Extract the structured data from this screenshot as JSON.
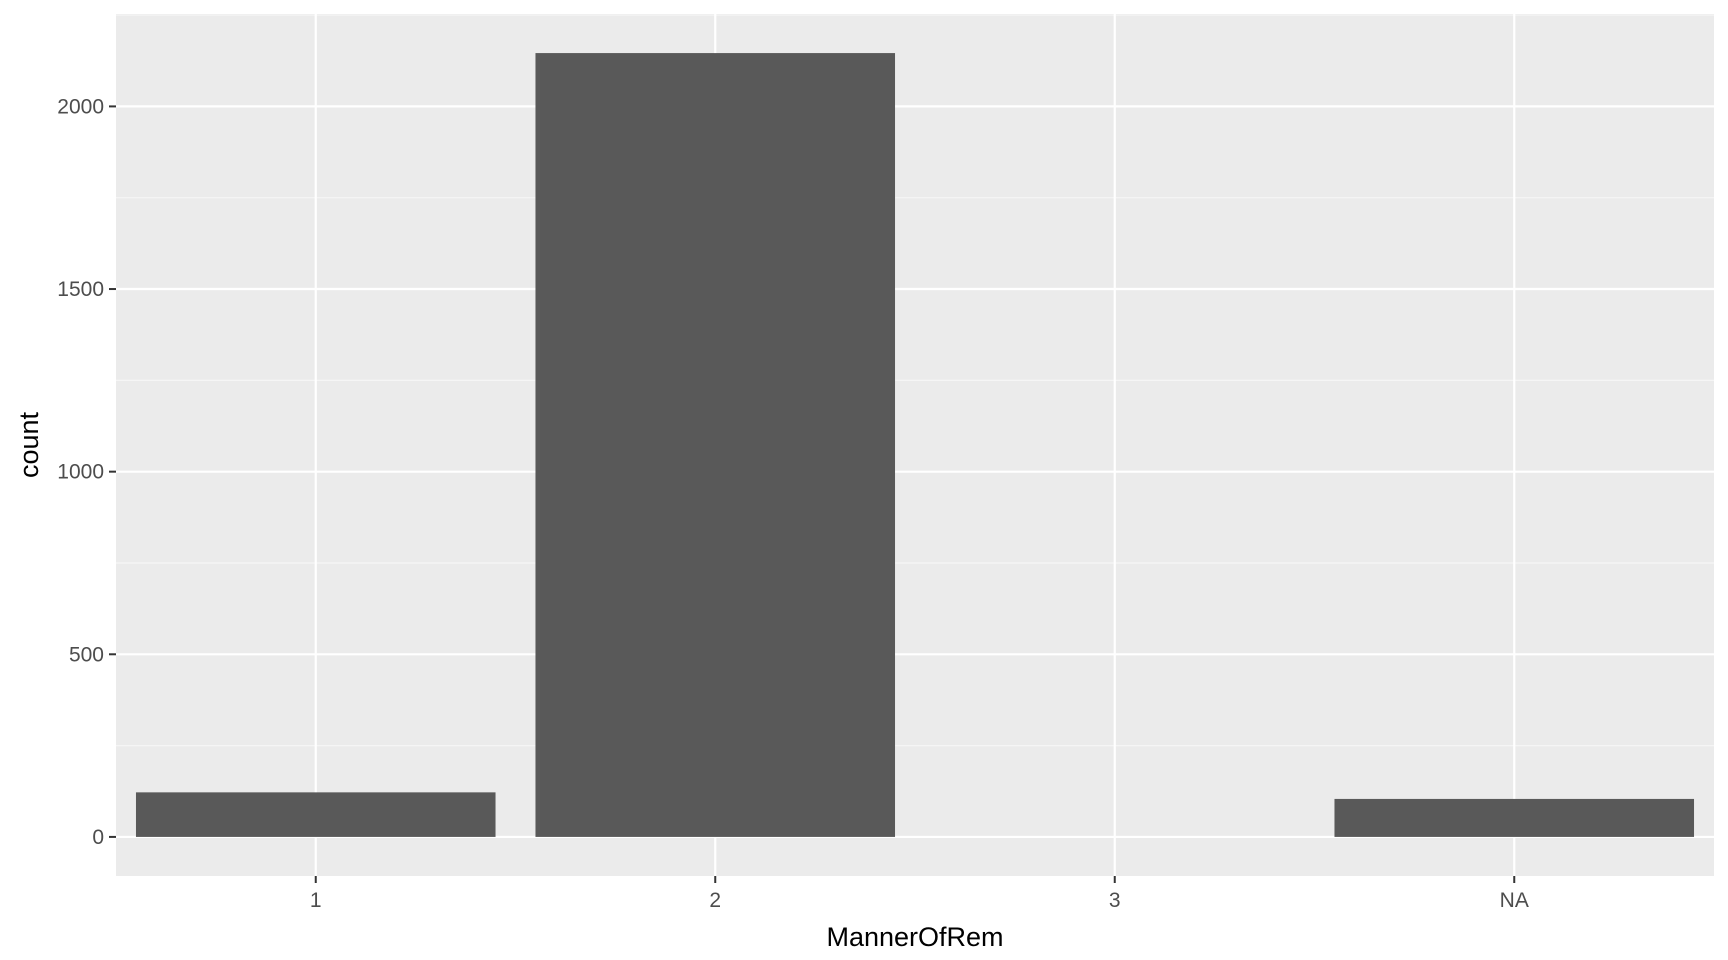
{
  "chart_data": {
    "type": "bar",
    "title": "",
    "xlabel": "MannerOfRem",
    "ylabel": "count",
    "categories": [
      "1",
      "2",
      "3",
      "NA"
    ],
    "values": [
      122,
      2146,
      0,
      104
    ],
    "ylim": [
      -107,
      2253
    ],
    "yticks": [
      0,
      500,
      1000,
      1500,
      2000
    ],
    "ytick_labels": [
      "0",
      "500",
      "1000",
      "1500",
      "2000"
    ],
    "grid": true,
    "legend": "none"
  },
  "colors": {
    "panel_background": "#ebebeb",
    "grid_major": "#ffffff",
    "grid_minor": "#f5f5f5",
    "bar_fill": "#595959",
    "tick_color": "#333333",
    "tick_label_color": "#4d4d4d",
    "axis_title_color": "#000000"
  }
}
